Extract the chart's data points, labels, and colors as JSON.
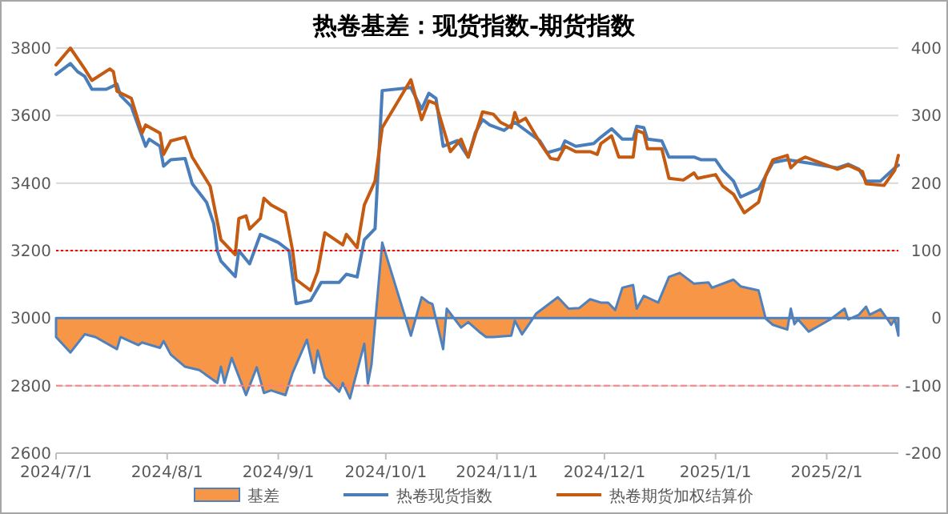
{
  "chart_data": {
    "type": "line",
    "title": "热卷基差：现货指数-期货指数",
    "xlim": [
      "2024-07-01",
      "2025-02-21"
    ],
    "xticks": [
      {
        "value": "2024-07-01",
        "label": "2024/7/1"
      },
      {
        "value": "2024-08-01",
        "label": "2024/8/1"
      },
      {
        "value": "2024-09-01",
        "label": "2024/9/1"
      },
      {
        "value": "2024-10-01",
        "label": "2024/10/1"
      },
      {
        "value": "2024-11-01",
        "label": "2024/11/1"
      },
      {
        "value": "2024-12-01",
        "label": "2024/12/1"
      },
      {
        "value": "2025-01-01",
        "label": "2025/1/1"
      },
      {
        "value": "2025-02-01",
        "label": "2025/2/1"
      }
    ],
    "ylim": [
      2600,
      3800
    ],
    "yticks": [
      2600,
      2800,
      3000,
      3200,
      3400,
      3600,
      3800
    ],
    "y2lim": [
      -200,
      400
    ],
    "y2ticks": [
      -200,
      -100,
      0,
      100,
      200,
      300,
      400
    ],
    "grid": "y",
    "legend": "bottom",
    "ref_lines": [
      {
        "axis": "y2",
        "value": 100,
        "color": "#ff0000",
        "line_style": "dotted"
      },
      {
        "axis": "y2",
        "value": -100,
        "color": "#ff8080",
        "line_style": "dashed"
      }
    ],
    "series": [
      {
        "name": "基差",
        "type": "area",
        "axis": "y2",
        "color": "#f79646",
        "x": [
          "2024-07-01",
          "2024-07-05",
          "2024-07-09",
          "2024-07-12",
          "2024-07-18",
          "2024-07-19",
          "2024-07-24",
          "2024-07-25",
          "2024-07-30",
          "2024-07-31",
          "2024-08-02",
          "2024-08-06",
          "2024-08-10",
          "2024-08-15",
          "2024-08-16",
          "2024-08-17",
          "2024-08-19",
          "2024-08-23",
          "2024-08-26",
          "2024-08-28",
          "2024-08-30",
          "2024-09-03",
          "2024-09-05",
          "2024-09-09",
          "2024-09-11",
          "2024-09-12",
          "2024-09-14",
          "2024-09-18",
          "2024-09-19",
          "2024-09-21",
          "2024-09-25",
          "2024-09-26",
          "2024-09-27",
          "2024-09-30",
          "2024-10-08",
          "2024-10-11",
          "2024-10-13",
          "2024-10-14",
          "2024-10-17",
          "2024-10-18",
          "2024-10-22",
          "2024-10-24",
          "2024-10-27",
          "2024-10-29",
          "2024-10-31",
          "2024-11-05",
          "2024-11-06",
          "2024-11-08",
          "2024-11-11",
          "2024-11-12",
          "2024-11-18",
          "2024-11-21",
          "2024-11-24",
          "2024-11-27",
          "2024-11-30",
          "2024-12-02",
          "2024-12-04",
          "2024-12-06",
          "2024-12-09",
          "2024-12-10",
          "2024-12-12",
          "2024-12-16",
          "2024-12-19",
          "2024-12-22",
          "2024-12-26",
          "2024-12-30",
          "2024-12-31",
          "2025-01-06",
          "2025-01-08",
          "2025-01-13",
          "2025-01-15",
          "2025-01-17",
          "2025-01-21",
          "2025-01-22",
          "2025-01-23",
          "2025-01-24",
          "2025-01-27",
          "2025-02-02",
          "2025-02-06",
          "2025-02-07",
          "2025-02-10",
          "2025-02-12",
          "2025-02-13",
          "2025-02-16",
          "2025-02-18",
          "2025-02-19",
          "2025-02-20",
          "2025-02-21"
        ],
        "values": [
          -28,
          -51,
          -24,
          -28,
          -46,
          -28,
          -40,
          -36,
          -44,
          -34,
          -54,
          -72,
          -77,
          -96,
          -72,
          -96,
          -59,
          -114,
          -73,
          -111,
          -107,
          -114,
          -81,
          -32,
          -81,
          -48,
          -88,
          -109,
          -96,
          -119,
          -38,
          -97,
          -69,
          112,
          -26,
          31,
          23,
          21,
          -46,
          14,
          -14,
          -6,
          -20,
          -28,
          -28,
          -26,
          -4,
          -24,
          -1,
          7,
          31,
          14,
          15,
          28,
          23,
          23,
          12,
          45,
          49,
          14,
          33,
          23,
          61,
          67,
          51,
          53,
          45,
          57,
          47,
          41,
          -1,
          -10,
          -17,
          14,
          -9,
          -2,
          -20,
          -2,
          14,
          -2,
          5,
          17,
          5,
          13,
          -2,
          -10,
          -2,
          -26
        ]
      },
      {
        "name": "热卷现货指数",
        "color": "#4a7ebb",
        "x": [
          "2024-07-01",
          "2024-07-05",
          "2024-07-07",
          "2024-07-09",
          "2024-07-11",
          "2024-07-15",
          "2024-07-18",
          "2024-07-19",
          "2024-07-22",
          "2024-07-26",
          "2024-07-27",
          "2024-07-30",
          "2024-07-31",
          "2024-08-02",
          "2024-08-06",
          "2024-08-08",
          "2024-08-12",
          "2024-08-14",
          "2024-08-15",
          "2024-08-16",
          "2024-08-20",
          "2024-08-21",
          "2024-08-24",
          "2024-08-27",
          "2024-09-01",
          "2024-09-04",
          "2024-09-06",
          "2024-09-10",
          "2024-09-13",
          "2024-09-18",
          "2024-09-20",
          "2024-09-23",
          "2024-09-25",
          "2024-09-28",
          "2024-09-30",
          "2024-10-08",
          "2024-10-11",
          "2024-10-13",
          "2024-10-15",
          "2024-10-17",
          "2024-10-21",
          "2024-10-24",
          "2024-10-26",
          "2024-10-28",
          "2024-10-30",
          "2024-11-03",
          "2024-11-06",
          "2024-11-08",
          "2024-11-13",
          "2024-11-15",
          "2024-11-19",
          "2024-11-20",
          "2024-11-23",
          "2024-11-28",
          "2024-11-30",
          "2024-12-03",
          "2024-12-06",
          "2024-12-09",
          "2024-12-10",
          "2024-12-12",
          "2024-12-13",
          "2024-12-17",
          "2024-12-19",
          "2024-12-26",
          "2024-12-28",
          "2025-01-01",
          "2025-01-03",
          "2025-01-06",
          "2025-01-08",
          "2025-01-13",
          "2025-01-15",
          "2025-01-17",
          "2025-01-21",
          "2025-01-26",
          "2025-02-04",
          "2025-02-07",
          "2025-02-10",
          "2025-02-12",
          "2025-02-16",
          "2025-02-20",
          "2025-02-21"
        ],
        "values": [
          3722,
          3754,
          3730,
          3716,
          3678,
          3678,
          3693,
          3659,
          3627,
          3509,
          3530,
          3509,
          3450,
          3469,
          3473,
          3398,
          3343,
          3280,
          3199,
          3169,
          3123,
          3200,
          3161,
          3248,
          3224,
          3200,
          3043,
          3052,
          3106,
          3106,
          3130,
          3122,
          3232,
          3265,
          3674,
          3683,
          3619,
          3666,
          3651,
          3509,
          3526,
          3477,
          3550,
          3588,
          3572,
          3556,
          3580,
          3564,
          3525,
          3490,
          3502,
          3525,
          3509,
          3517,
          3536,
          3561,
          3530,
          3530,
          3568,
          3564,
          3530,
          3525,
          3477,
          3477,
          3469,
          3469,
          3438,
          3406,
          3359,
          3383,
          3422,
          3461,
          3469,
          3461,
          3445,
          3456,
          3441,
          3406,
          3406,
          3445,
          3453
        ]
      },
      {
        "name": "热卷期货加权结算价",
        "color": "#c55a11",
        "x": [
          "2024-07-01",
          "2024-07-05",
          "2024-07-09",
          "2024-07-11",
          "2024-07-16",
          "2024-07-17",
          "2024-07-18",
          "2024-07-22",
          "2024-07-25",
          "2024-07-26",
          "2024-07-30",
          "2024-07-31",
          "2024-08-02",
          "2024-08-06",
          "2024-08-08",
          "2024-08-13",
          "2024-08-16",
          "2024-08-20",
          "2024-08-21",
          "2024-08-23",
          "2024-08-24",
          "2024-08-27",
          "2024-08-28",
          "2024-08-30",
          "2024-09-03",
          "2024-09-05",
          "2024-09-06",
          "2024-09-10",
          "2024-09-12",
          "2024-09-14",
          "2024-09-19",
          "2024-09-20",
          "2024-09-23",
          "2024-09-25",
          "2024-09-28",
          "2024-09-30",
          "2024-10-08",
          "2024-10-11",
          "2024-10-13",
          "2024-10-15",
          "2024-10-19",
          "2024-10-22",
          "2024-10-24",
          "2024-10-28",
          "2024-10-31",
          "2024-11-02",
          "2024-11-05",
          "2024-11-06",
          "2024-11-07",
          "2024-11-09",
          "2024-11-13",
          "2024-11-16",
          "2024-11-18",
          "2024-11-20",
          "2024-11-23",
          "2024-11-27",
          "2024-11-29",
          "2024-11-30",
          "2024-12-03",
          "2024-12-05",
          "2024-12-09",
          "2024-12-10",
          "2024-12-12",
          "2024-12-13",
          "2024-12-17",
          "2024-12-19",
          "2024-12-23",
          "2024-12-26",
          "2024-12-27",
          "2025-01-01",
          "2025-01-03",
          "2025-01-06",
          "2025-01-09",
          "2025-01-13",
          "2025-01-15",
          "2025-01-17",
          "2025-01-21",
          "2025-01-22",
          "2025-01-24",
          "2025-01-26",
          "2025-02-04",
          "2025-02-07",
          "2025-02-11",
          "2025-02-12",
          "2025-02-17",
          "2025-02-20",
          "2025-02-21"
        ],
        "values": [
          3750,
          3800,
          3738,
          3704,
          3738,
          3730,
          3672,
          3651,
          3548,
          3572,
          3548,
          3485,
          3525,
          3536,
          3477,
          3391,
          3232,
          3188,
          3295,
          3303,
          3264,
          3295,
          3355,
          3335,
          3312,
          3200,
          3114,
          3082,
          3138,
          3253,
          3217,
          3248,
          3209,
          3335,
          3406,
          3564,
          3706,
          3588,
          3643,
          3635,
          3493,
          3530,
          3477,
          3611,
          3604,
          3580,
          3564,
          3609,
          3580,
          3592,
          3520,
          3473,
          3469,
          3509,
          3493,
          3493,
          3485,
          3517,
          3540,
          3477,
          3477,
          3556,
          3548,
          3502,
          3502,
          3414,
          3409,
          3430,
          3414,
          3425,
          3391,
          3367,
          3312,
          3343,
          3422,
          3469,
          3482,
          3445,
          3466,
          3477,
          3441,
          3453,
          3434,
          3398,
          3393,
          3438,
          3482
        ]
      }
    ]
  }
}
